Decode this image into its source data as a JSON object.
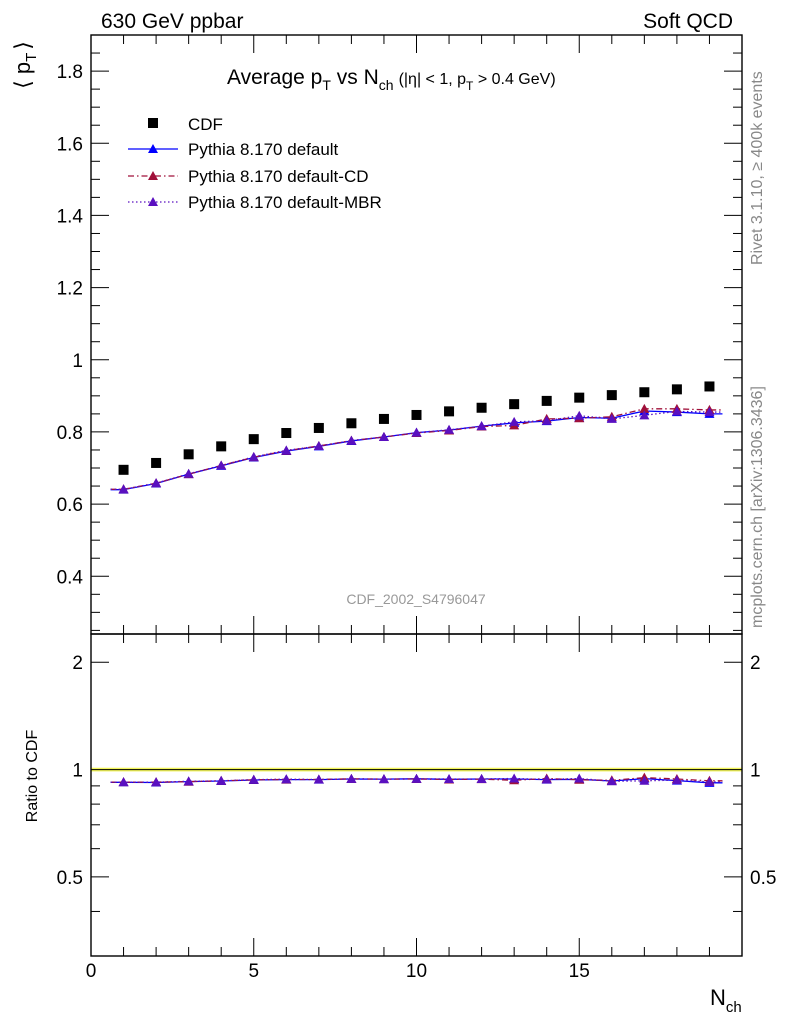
{
  "header": {
    "left": "630 GeV ppbar",
    "right": "Soft QCD"
  },
  "side_labels": {
    "rivet": "Rivet 3.1.10, ≥ 400k events",
    "source": "mcplots.cern.ch [arXiv:1306.3436]"
  },
  "chart_data": [
    {
      "type": "scatter",
      "panel": "main",
      "title": "Average pT vs Nch (|η| < 1, pT > 0.4 GeV)",
      "title_parts": {
        "main": "Average p",
        "sub1": "T",
        "mid": " vs N",
        "sub2": "ch",
        "cut": "(|η| < 1, p",
        "cut_sub": "T",
        "cut_end": " > 0.4 GeV)"
      },
      "ylabel": "⟨ pT ⟩",
      "ylabel_parts": {
        "open": "⟨ p",
        "sub": "T",
        "close": "⟩"
      },
      "xlabel": "Nch",
      "xlabel_parts": {
        "main": "N",
        "sub": "ch"
      },
      "xlim": [
        0,
        20
      ],
      "ylim": [
        0.24,
        1.9
      ],
      "x_ticks": [
        0,
        5,
        10,
        15
      ],
      "y_ticks": [
        0.4,
        0.6,
        0.8,
        1,
        1.2,
        1.4,
        1.6,
        1.8
      ],
      "y_tick_labels": [
        "0.4",
        "0.6",
        "0.8",
        "1",
        "1.2",
        "1.4",
        "1.6",
        "1.8"
      ],
      "watermark": "CDF_2002_S4796047",
      "legend_position": "top-left",
      "x": [
        1,
        2,
        3,
        4,
        5,
        6,
        7,
        8,
        9,
        10,
        11,
        12,
        13,
        14,
        15,
        16,
        17,
        18,
        19
      ],
      "series": [
        {
          "name": "CDF",
          "style": "data",
          "color": "#000000",
          "values": [
            0.695,
            0.714,
            0.738,
            0.76,
            0.78,
            0.797,
            0.811,
            0.824,
            0.836,
            0.847,
            0.857,
            0.867,
            0.877,
            0.886,
            0.895,
            0.902,
            0.91,
            0.918,
            0.926
          ]
        },
        {
          "name": "Pythia 8.170 default",
          "style": "solid",
          "color": "#0000ff",
          "values": [
            0.64,
            0.657,
            0.683,
            0.706,
            0.729,
            0.747,
            0.76,
            0.775,
            0.786,
            0.798,
            0.805,
            0.816,
            0.825,
            0.83,
            0.84,
            0.838,
            0.858,
            0.855,
            0.85
          ]
        },
        {
          "name": "Pythia 8.170 default-CD",
          "style": "dashdot",
          "color": "#a0103a",
          "values": [
            0.641,
            0.658,
            0.683,
            0.707,
            0.73,
            0.748,
            0.761,
            0.776,
            0.786,
            0.797,
            0.804,
            0.815,
            0.818,
            0.836,
            0.838,
            0.842,
            0.864,
            0.864,
            0.861
          ]
        },
        {
          "name": "Pythia 8.170 default-MBR",
          "style": "dotted",
          "color": "#5a10c0",
          "values": [
            0.641,
            0.658,
            0.684,
            0.707,
            0.731,
            0.749,
            0.761,
            0.776,
            0.786,
            0.798,
            0.806,
            0.816,
            0.828,
            0.831,
            0.845,
            0.836,
            0.846,
            0.857,
            0.855
          ]
        }
      ]
    },
    {
      "type": "scatter",
      "panel": "ratio",
      "ylabel": "Ratio to CDF",
      "xlim": [
        0,
        20
      ],
      "ylim": [
        0.3,
        2.4
      ],
      "yscale": "log",
      "y_ticks": [
        0.5,
        1,
        2
      ],
      "y_tick_labels": [
        "0.5",
        "1",
        "2"
      ],
      "x": [
        1,
        2,
        3,
        4,
        5,
        6,
        7,
        8,
        9,
        10,
        11,
        12,
        13,
        14,
        15,
        16,
        17,
        18,
        19
      ],
      "series": [
        {
          "name": "Pythia 8.170 default",
          "style": "solid",
          "color": "#0000ff",
          "values": [
            0.921,
            0.92,
            0.925,
            0.929,
            0.935,
            0.937,
            0.937,
            0.941,
            0.94,
            0.942,
            0.939,
            0.941,
            0.941,
            0.937,
            0.939,
            0.929,
            0.943,
            0.931,
            0.918
          ]
        },
        {
          "name": "Pythia 8.170 default-CD",
          "style": "dashdot",
          "color": "#a0103a",
          "values": [
            0.922,
            0.922,
            0.925,
            0.93,
            0.936,
            0.938,
            0.938,
            0.942,
            0.94,
            0.941,
            0.938,
            0.94,
            0.933,
            0.944,
            0.936,
            0.933,
            0.949,
            0.941,
            0.93
          ]
        },
        {
          "name": "Pythia 8.170 default-MBR",
          "style": "dotted",
          "color": "#5a10c0",
          "values": [
            0.922,
            0.922,
            0.927,
            0.93,
            0.937,
            0.94,
            0.938,
            0.942,
            0.94,
            0.942,
            0.941,
            0.941,
            0.944,
            0.938,
            0.944,
            0.927,
            0.93,
            0.934,
            0.923
          ]
        }
      ]
    }
  ]
}
